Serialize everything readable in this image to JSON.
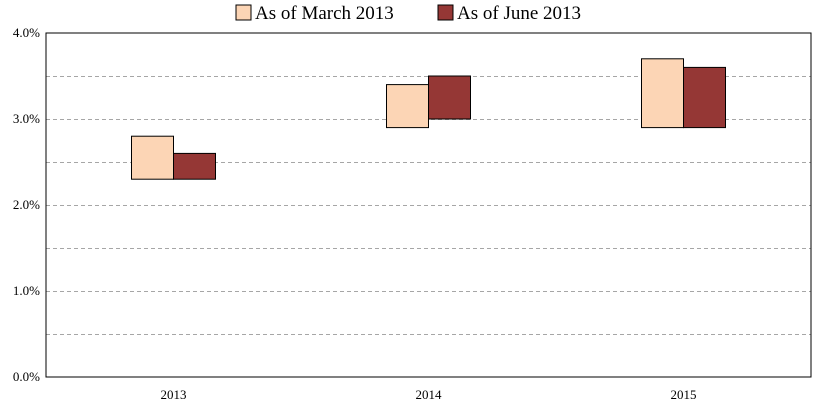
{
  "chart_data": {
    "type": "bar",
    "subtype": "floating-range",
    "categories": [
      "2013",
      "2014",
      "2015"
    ],
    "series": [
      {
        "name": "As of March 2013",
        "color": "#fcd5b5",
        "low": [
          2.3,
          2.9,
          2.9
        ],
        "high": [
          2.8,
          3.4,
          3.7
        ]
      },
      {
        "name": "As of June 2013",
        "color": "#953735",
        "low": [
          2.3,
          3.0,
          2.9
        ],
        "high": [
          2.6,
          3.5,
          3.6
        ]
      }
    ],
    "y_ticks": [
      "0.0%",
      "1.0%",
      "2.0%",
      "3.0%",
      "4.0%"
    ],
    "ylim": [
      0,
      4
    ],
    "gridlines": "dashed",
    "legend_position": "top"
  }
}
